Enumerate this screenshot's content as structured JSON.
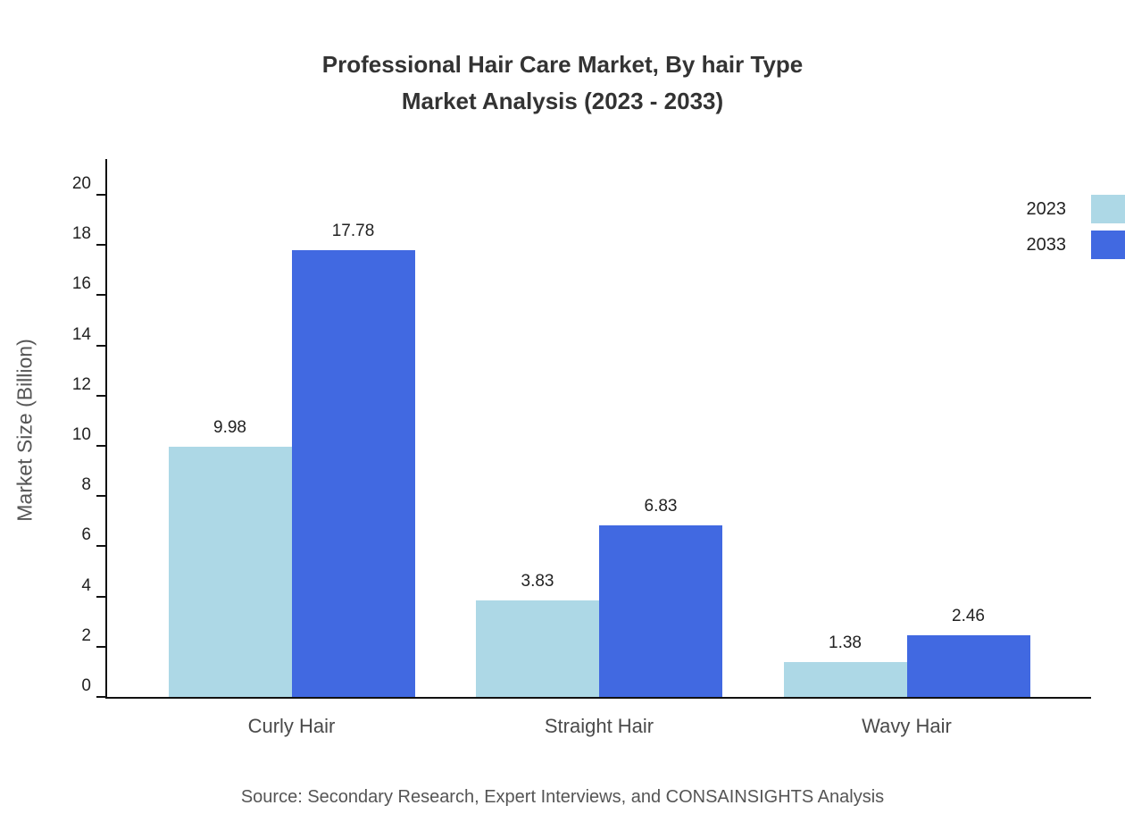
{
  "title": {
    "line1": "Professional Hair Care Market, By hair Type",
    "line2": "Market Analysis (2023 - 2033)"
  },
  "source": "Source: Secondary Research, Expert Interviews, and CONSAINSIGHTS Analysis",
  "chart_data": {
    "type": "bar",
    "title": "Professional Hair Care Market, By hair Type Market Analysis (2023 - 2033)",
    "categories": [
      "Curly Hair",
      "Straight Hair",
      "Wavy Hair"
    ],
    "series": [
      {
        "name": "2023",
        "color": "#ADD8E6",
        "values": [
          9.98,
          3.83,
          1.38
        ]
      },
      {
        "name": "2033",
        "color": "#4169E1",
        "values": [
          17.78,
          6.83,
          2.46
        ]
      }
    ],
    "xlabel": "",
    "ylabel": "Market Size (Billion)",
    "ylim": [
      0,
      20
    ],
    "yticks": [
      0,
      2,
      4,
      6,
      8,
      10,
      12,
      14,
      16,
      18,
      20
    ],
    "grid": false,
    "legend_position": "top-right"
  }
}
